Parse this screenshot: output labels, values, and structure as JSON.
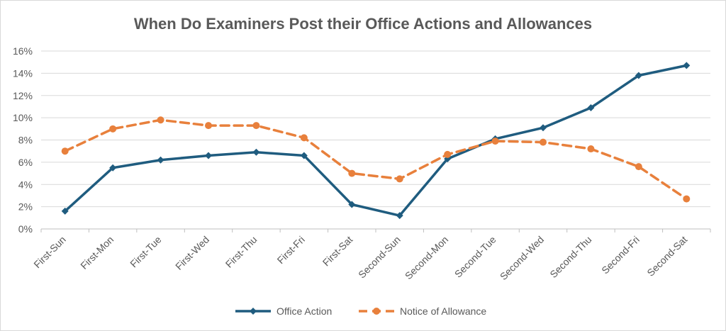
{
  "chart_data": {
    "type": "line",
    "title": "When Do Examiners Post their Office Actions and Allowances",
    "xlabel": "",
    "ylabel": "",
    "ylim": [
      0,
      16
    ],
    "yticks": [
      "0%",
      "2%",
      "4%",
      "6%",
      "8%",
      "10%",
      "12%",
      "14%",
      "16%"
    ],
    "grid": true,
    "legend_position": "bottom",
    "categories": [
      "First-Sun",
      "First-Mon",
      "First-Tue",
      "First-Wed",
      "First-Thu",
      "First-Fri",
      "First-Sat",
      "Second-Sun",
      "Second-Mon",
      "Second-Tue",
      "Second-Wed",
      "Second-Thu",
      "Second-Fri",
      "Second-Sat"
    ],
    "series": [
      {
        "name": "Office Action",
        "color": "#1f5c7f",
        "style": "solid",
        "marker": "diamond",
        "values": [
          1.6,
          5.5,
          6.2,
          6.6,
          6.9,
          6.6,
          2.2,
          1.2,
          6.3,
          8.1,
          9.1,
          10.9,
          13.8,
          14.7
        ]
      },
      {
        "name": "Notice of Allowance",
        "color": "#e8803c",
        "style": "dashed",
        "marker": "circle",
        "values": [
          7.0,
          9.0,
          9.8,
          9.3,
          9.3,
          8.2,
          5.0,
          4.5,
          6.7,
          7.9,
          7.8,
          7.2,
          5.6,
          2.7
        ]
      }
    ]
  }
}
